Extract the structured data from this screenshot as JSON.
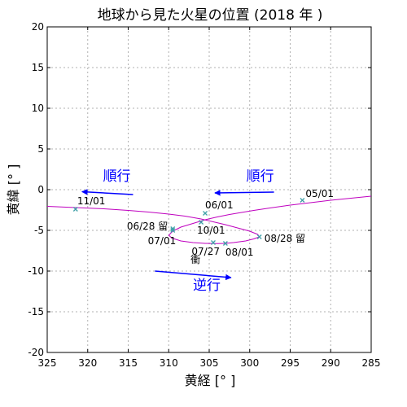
{
  "chart_data": {
    "type": "line",
    "title": "地球から見た火星の位置 (2018 年 )",
    "xlabel": "黄経 [° ]",
    "ylabel": "黄緯 [° ]",
    "xlim": [
      325,
      285
    ],
    "ylim": [
      -20,
      20
    ],
    "x_reversed": true,
    "xticks": [
      325,
      320,
      315,
      310,
      305,
      300,
      295,
      290,
      285
    ],
    "yticks": [
      -20,
      -15,
      -10,
      -5,
      0,
      5,
      10,
      15,
      20
    ],
    "grid": true,
    "series": [
      {
        "color": "#bf00bf",
        "x": [
          285.0,
          287.5,
          290.0,
          292.5,
          295.0,
          297.5,
          299.5,
          301.0,
          302.5,
          304.0,
          305.5,
          307.0,
          308.5,
          309.5,
          310.0,
          309.6,
          308.5,
          307.0,
          305.5,
          304.0,
          303.0,
          302.0,
          300.5,
          299.5,
          298.8,
          299.0,
          300.0,
          301.5,
          303.0,
          304.5,
          306.0,
          308.0,
          310.0,
          312.5,
          315.0,
          318.0,
          321.5,
          325.0
        ],
        "y": [
          -0.8,
          -1.05,
          -1.3,
          -1.6,
          -1.9,
          -2.25,
          -2.55,
          -2.8,
          -3.05,
          -3.35,
          -3.7,
          -4.15,
          -4.6,
          -5.1,
          -5.6,
          -5.95,
          -6.3,
          -6.5,
          -6.6,
          -6.62,
          -6.6,
          -6.5,
          -6.3,
          -6.05,
          -5.8,
          -5.5,
          -5.1,
          -4.7,
          -4.3,
          -3.95,
          -3.6,
          -3.25,
          -3.0,
          -2.75,
          -2.55,
          -2.35,
          -2.2,
          -2.05
        ]
      }
    ],
    "markers": [
      {
        "label": "05/01",
        "x": 293.5,
        "y": -1.3
      },
      {
        "label": "06/01",
        "x": 305.5,
        "y": -2.9
      },
      {
        "label": "06/28 留",
        "x": 309.5,
        "y": -4.8
      },
      {
        "label": "07/01",
        "x": 309.5,
        "y": -5.0
      },
      {
        "label": "07/27",
        "x": 304.5,
        "y": -6.5
      },
      {
        "label": "08/01",
        "x": 303.0,
        "y": -6.6
      },
      {
        "label": "08/28 留",
        "x": 298.8,
        "y": -5.8
      },
      {
        "label": "10/01",
        "x": 306.0,
        "y": -4.0
      },
      {
        "label": "11/01",
        "x": 321.5,
        "y": -2.4
      }
    ],
    "marker_color": "#3fa0a8",
    "annotations": [
      {
        "text": "衝",
        "x": 306.7,
        "y": -9.0
      },
      {
        "text": "順行",
        "label_x": 316.4,
        "label_y": 1.1,
        "arrow_from": [
          314.4,
          -0.6
        ],
        "arrow_to": [
          320.7,
          -0.25
        ],
        "color": "#0000ff"
      },
      {
        "text": "順行",
        "label_x": 298.7,
        "label_y": 1.1,
        "arrow_from": [
          297.0,
          -0.3
        ],
        "arrow_to": [
          304.3,
          -0.4
        ],
        "color": "#0000ff"
      },
      {
        "text": "逆行",
        "label_x": 305.3,
        "label_y": -12.3,
        "arrow_from": [
          311.7,
          -10.0
        ],
        "arrow_to": [
          302.3,
          -10.8
        ],
        "color": "#0000ff"
      }
    ]
  }
}
